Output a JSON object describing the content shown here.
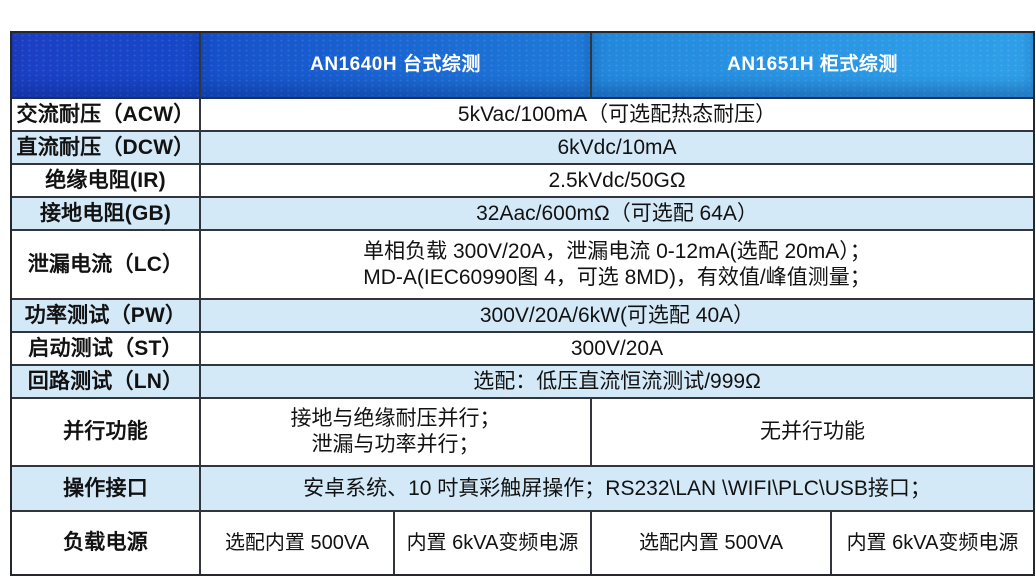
{
  "header": {
    "corner": "",
    "product_a": "AN1640H 台式综测",
    "product_b": "AN1651H 柜式综测"
  },
  "colors": {
    "header_blue_left": "#1549c9",
    "header_blue_right": "#2f9fe8",
    "row_shade_blue": "#d4e9f8",
    "grid_line": "#32363c",
    "text": "#121212"
  },
  "rows": [
    {
      "label": "交流耐压（ACW）",
      "value": "5kVac/100mA（可选配热态耐压）"
    },
    {
      "label": "直流耐压（DCW）",
      "value": "6kVdc/10mA"
    },
    {
      "label": "绝缘电阻(IR)",
      "value": "2.5kVdc/50GΩ"
    },
    {
      "label": "接地电阻(GB)",
      "value": "32Aac/600mΩ（可选配 64A）"
    },
    {
      "label": "泄漏电流（LC）",
      "lines": [
        "单相负载 300V/20A，泄漏电流 0-12mA(选配 20mA）；",
        "MD-A(IEC60990图 4，可选 8MD)，有效值/峰值测量；"
      ]
    },
    {
      "label": "功率测试（PW）",
      "value": "300V/20A/6kW(可选配 40A）"
    },
    {
      "label": "启动测试（ST）",
      "value": "300V/20A"
    },
    {
      "label": "回路测试（LN）",
      "value": "选配：低压直流恒流测试/999Ω"
    },
    {
      "label": "并行功能",
      "left_lines": [
        "接地与绝缘耐压并行；",
        "泄漏与功率并行；"
      ],
      "right": "无并行功能"
    },
    {
      "label": "操作接口",
      "value": "安卓系统、10 吋真彩触屏操作；RS232\\LAN \\WIFI\\PLC\\USB接口；"
    },
    {
      "label": "负载电源",
      "cells": [
        "选配内置 500VA",
        "内置 6kVA变频电源",
        "选配内置 500VA",
        "内置 6kVA变频电源"
      ]
    }
  ]
}
